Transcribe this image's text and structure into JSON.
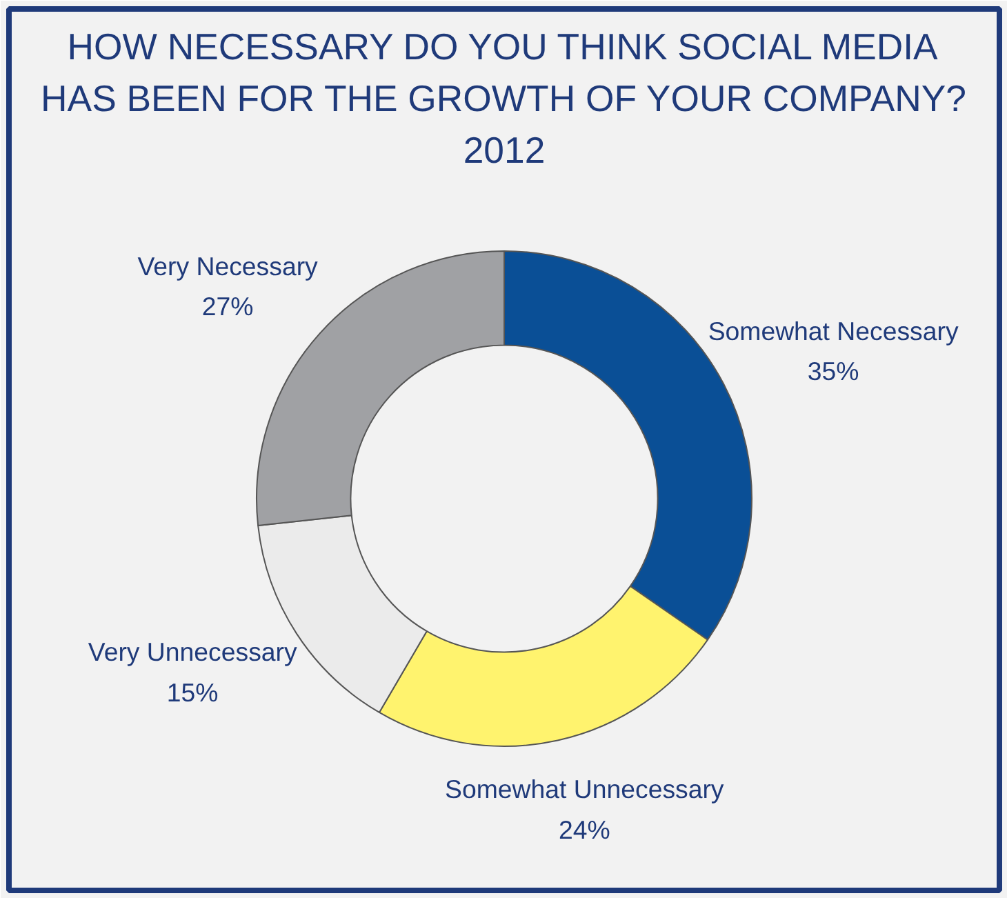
{
  "chart_data": {
    "type": "donut",
    "title": "HOW NECESSARY DO YOU THINK SOCIAL MEDIA HAS BEEN FOR THE GROWTH OF YOUR COMPANY?",
    "subtitle": "2012",
    "categories": [
      "Somewhat Necessary",
      "Somewhat Unnecessary",
      "Very Unnecessary",
      "Very Necessary"
    ],
    "values": [
      35,
      24,
      15,
      27
    ],
    "value_labels": [
      "35%",
      "24%",
      "15%",
      "27%"
    ],
    "colors": [
      "#0a4f96",
      "#fff36e",
      "#ebebeb",
      "#a0a1a4"
    ]
  }
}
